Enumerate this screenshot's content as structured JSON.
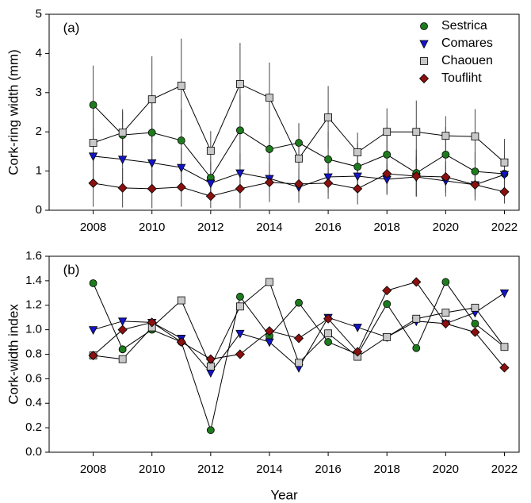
{
  "chart_data": [
    {
      "type": "line",
      "panel_label": "(a)",
      "y_label": "Cork-ring width (mm)",
      "x_label": null,
      "x": [
        2008,
        2009,
        2010,
        2011,
        2012,
        2013,
        2014,
        2015,
        2016,
        2017,
        2018,
        2019,
        2020,
        2021,
        2022
      ],
      "xlim": [
        2006.5,
        2022.5
      ],
      "xticks": [
        2008,
        2010,
        2012,
        2014,
        2016,
        2018,
        2020,
        2022
      ],
      "ylim": [
        0,
        5
      ],
      "yticks": [
        0,
        1,
        2,
        3,
        4,
        5
      ],
      "legend": "upper right",
      "series": [
        {
          "name": "Sestrica",
          "color": "#1e7b1e",
          "marker": "circle",
          "values": [
            2.69,
            1.92,
            1.98,
            1.78,
            0.83,
            2.04,
            1.56,
            1.72,
            1.3,
            1.11,
            1.42,
            0.95,
            1.42,
            0.99,
            0.93
          ],
          "errors": [
            1.0,
            0.6,
            0.9,
            0.8,
            0.4,
            0.9,
            0.7,
            0.5,
            0.7,
            0.6,
            0.7,
            0.6,
            0.7,
            0.5,
            0.5
          ]
        },
        {
          "name": "Comares",
          "color": "#1414c8",
          "marker": "triangle-down",
          "values": [
            1.38,
            1.3,
            1.21,
            1.09,
            0.69,
            0.95,
            0.81,
            0.59,
            0.85,
            0.87,
            0.79,
            0.85,
            0.75,
            0.65,
            0.91
          ],
          "errors": [
            0.7,
            0.6,
            0.6,
            0.5,
            0.3,
            0.5,
            0.4,
            0.4,
            0.4,
            0.4,
            0.4,
            0.5,
            0.4,
            0.3,
            0.4
          ]
        },
        {
          "name": "Chaouen",
          "color": "#c8c8c8",
          "marker": "square",
          "values": [
            1.72,
            1.98,
            2.83,
            3.18,
            1.52,
            3.22,
            2.87,
            1.32,
            2.37,
            1.48,
            2.0,
            2.0,
            1.9,
            1.88,
            1.22
          ],
          "errors": [
            0.9,
            0.6,
            1.1,
            1.2,
            0.5,
            1.05,
            0.9,
            0.9,
            0.8,
            0.5,
            0.6,
            0.8,
            0.5,
            0.7,
            0.6
          ]
        },
        {
          "name": "Toufliht",
          "color": "#8b1010",
          "marker": "diamond",
          "values": [
            0.69,
            0.57,
            0.55,
            0.59,
            0.36,
            0.55,
            0.71,
            0.67,
            0.69,
            0.55,
            0.93,
            0.87,
            0.85,
            0.65,
            0.47
          ],
          "errors": [
            0.6,
            0.5,
            0.5,
            0.5,
            0.3,
            0.5,
            0.5,
            0.4,
            0.4,
            0.4,
            0.5,
            0.5,
            0.4,
            0.4,
            0.3
          ]
        }
      ]
    },
    {
      "type": "line",
      "panel_label": "(b)",
      "y_label": "Cork-width index",
      "x_label": "Year",
      "x": [
        2008,
        2009,
        2010,
        2011,
        2012,
        2013,
        2014,
        2015,
        2016,
        2017,
        2018,
        2019,
        2020,
        2021,
        2022
      ],
      "xlim": [
        2006.5,
        2022.5
      ],
      "xticks": [
        2008,
        2010,
        2012,
        2014,
        2016,
        2018,
        2020,
        2022
      ],
      "ylim": [
        0,
        1.6
      ],
      "yticks": [
        {
          "value": 0,
          "label": "0.0"
        },
        {
          "value": 0.2,
          "label": "0.2"
        },
        {
          "value": 0.4,
          "label": "0.4"
        },
        {
          "value": 0.6,
          "label": "0.6"
        },
        {
          "value": 0.8,
          "label": "0.8"
        },
        {
          "value": 1,
          "label": "1.0"
        },
        {
          "value": 1.2,
          "label": "1.2"
        },
        {
          "value": 1.4,
          "label": "1.4"
        },
        {
          "value": 1.6,
          "label": "1.6"
        }
      ],
      "series": [
        {
          "name": "Sestrica",
          "color": "#1e7b1e",
          "marker": "circle",
          "values": [
            1.38,
            0.84,
            1.0,
            0.9,
            0.18,
            1.27,
            0.95,
            1.22,
            0.9,
            0.8,
            1.21,
            0.85,
            1.39,
            1.05,
            0.86
          ]
        },
        {
          "name": "Comares",
          "color": "#1414c8",
          "marker": "triangle-down",
          "values": [
            1.0,
            1.07,
            1.06,
            0.93,
            0.65,
            0.97,
            0.9,
            0.69,
            1.1,
            1.02,
            0.94,
            1.07,
            1.05,
            1.14,
            1.3
          ]
        },
        {
          "name": "Chaouen",
          "color": "#c8c8c8",
          "marker": "square",
          "values": [
            0.79,
            0.76,
            1.02,
            1.24,
            0.7,
            1.19,
            1.39,
            0.73,
            0.97,
            0.78,
            0.94,
            1.09,
            1.14,
            1.18,
            0.86
          ]
        },
        {
          "name": "Toufliht",
          "color": "#8b1010",
          "marker": "diamond",
          "values": [
            0.79,
            1.0,
            1.06,
            0.9,
            0.76,
            0.8,
            0.99,
            0.93,
            1.09,
            0.82,
            1.32,
            1.39,
            1.05,
            0.98,
            0.69
          ]
        }
      ]
    }
  ]
}
